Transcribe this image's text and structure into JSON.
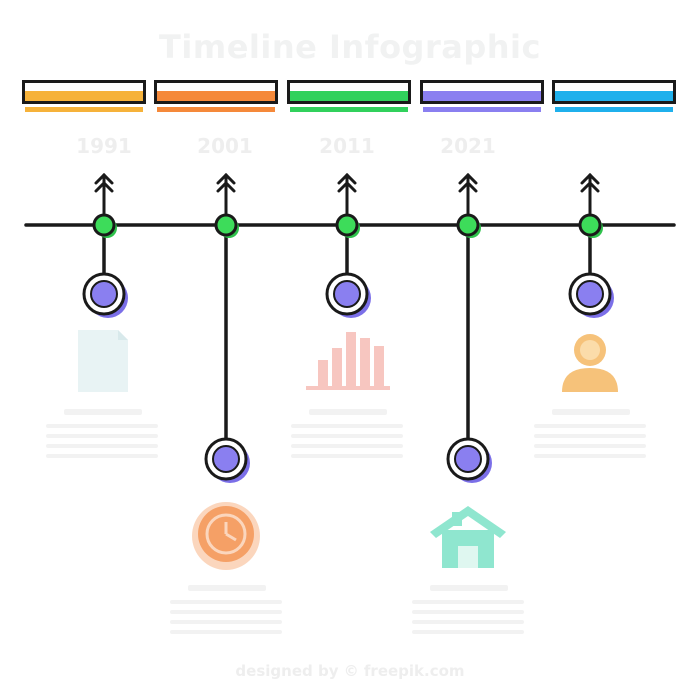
{
  "title": "Timeline Infographic",
  "footer": "designed by © freepik.com",
  "colors": {
    "line": "#1a1a1a",
    "node": "#3ddc5a",
    "circle": "#8a7ff0",
    "circle_shadow": "#7b6fe8"
  },
  "segments": [
    {
      "year": "1991",
      "color": "#f6b23a",
      "icon": "document-icon",
      "icon_color": "#e8f3f4"
    },
    {
      "year": "2001",
      "color": "#f5893a",
      "icon": "clock-icon",
      "icon_color": "#f5a066"
    },
    {
      "year": "2011",
      "color": "#31d15c",
      "icon": "bar-chart-icon",
      "icon_color": "#f7c6c0"
    },
    {
      "year": "2021",
      "color": "#8a7ff0",
      "icon": "house-icon",
      "icon_color": "#8fe6cf"
    },
    {
      "year": "",
      "color": "#1fb0ec",
      "icon": "person-icon",
      "icon_color": "#f6c27a"
    }
  ]
}
